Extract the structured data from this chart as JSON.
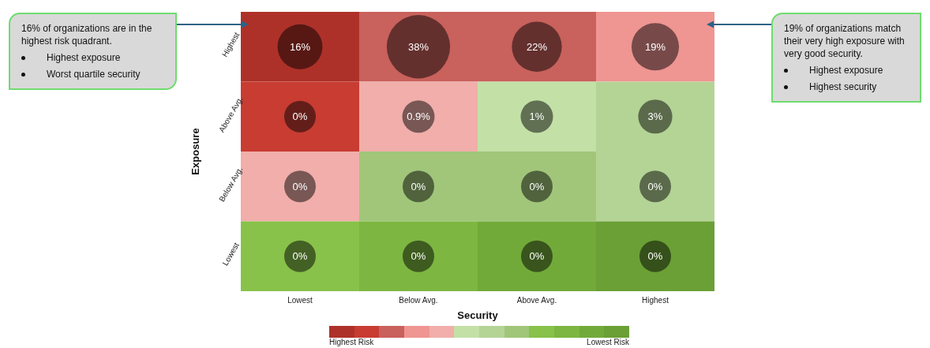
{
  "chart_data": {
    "type": "heatmap",
    "xlabel": "Security",
    "ylabel": "Exposure",
    "categories": [
      "Lowest",
      "Below Avg.",
      "Above Avg.",
      "Highest"
    ],
    "y_categories": [
      "Highest",
      "Above Avg.",
      "Below Avg.",
      "Lowest"
    ],
    "cells": [
      [
        16,
        38,
        22,
        19
      ],
      [
        0,
        0.9,
        1,
        3
      ],
      [
        0,
        0,
        0,
        0
      ],
      [
        0,
        0,
        0,
        0
      ]
    ],
    "cell_labels": [
      [
        "16%",
        "38%",
        "22%",
        "19%"
      ],
      [
        "0%",
        "0.9%",
        "1%",
        "3%"
      ],
      [
        "0%",
        "0%",
        "0%",
        "0%"
      ],
      [
        "0%",
        "0%",
        "0%",
        "0%"
      ]
    ],
    "colors": [
      [
        "#ae3129",
        "#c9615c",
        "#c9615c",
        "#ef9592"
      ],
      [
        "#c83c32",
        "#f1aeaa",
        "#c3e0a7",
        "#b4d496"
      ],
      [
        "#f1aeaa",
        "#a1c67a",
        "#a1c67a",
        "#b4d496"
      ],
      [
        "#88c24a",
        "#7db641",
        "#72aa3a",
        "#6aa035"
      ]
    ],
    "annotations": [
      "16% of organizations are in the highest risk quadrant.",
      "Highest exposure",
      "Worst quartile security",
      "19% of organizations match their very high exposure with very good security.",
      "Highest exposure",
      "Highest security",
      "Highest Risk",
      "Lowest Risk"
    ]
  }
}
